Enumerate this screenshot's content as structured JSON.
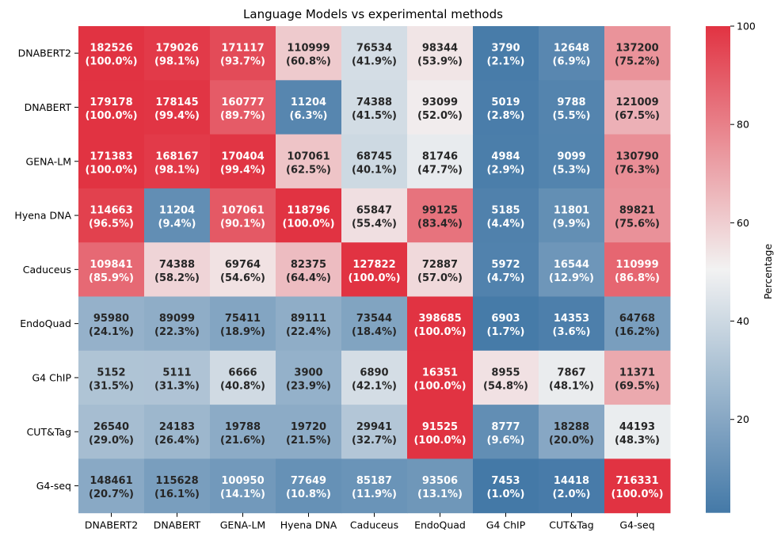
{
  "chart_data": {
    "type": "heatmap",
    "title": "Language Models vs experimental methods",
    "xlabel": "",
    "ylabel": "",
    "x_categories": [
      "DNABERT2",
      "DNABERT",
      "GENA-LM",
      "Hyena DNA",
      "Caduceus",
      "EndoQuad",
      "G4 ChIP",
      "CUT&Tag",
      "G4-seq"
    ],
    "y_categories": [
      "DNABERT2",
      "DNABERT",
      "GENA-LM",
      "Hyena DNA",
      "Caduceus",
      "EndoQuad",
      "G4 ChIP",
      "CUT&Tag",
      "G4-seq"
    ],
    "counts": [
      [
        182526,
        179026,
        171117,
        110999,
        76534,
        98344,
        3790,
        12648,
        137200
      ],
      [
        179178,
        178145,
        160777,
        11204,
        74388,
        93099,
        5019,
        9788,
        121009
      ],
      [
        171383,
        168167,
        170404,
        107061,
        68745,
        81746,
        4984,
        9099,
        130790
      ],
      [
        114663,
        11204,
        107061,
        118796,
        65847,
        99125,
        5185,
        11801,
        89821
      ],
      [
        109841,
        74388,
        69764,
        82375,
        127822,
        72887,
        5972,
        16544,
        110999
      ],
      [
        95980,
        89099,
        75411,
        89111,
        73544,
        398685,
        6903,
        14353,
        64768
      ],
      [
        5152,
        5111,
        6666,
        3900,
        6890,
        16351,
        8955,
        7867,
        11371
      ],
      [
        26540,
        24183,
        19788,
        19720,
        29941,
        91525,
        8777,
        18288,
        44193
      ],
      [
        148461,
        115628,
        100950,
        77649,
        85187,
        93506,
        7453,
        14418,
        716331
      ]
    ],
    "percentages": [
      [
        100.0,
        98.1,
        93.7,
        60.8,
        41.9,
        53.9,
        2.1,
        6.9,
        75.2
      ],
      [
        100.0,
        99.4,
        89.7,
        6.3,
        41.5,
        52.0,
        2.8,
        5.5,
        67.5
      ],
      [
        100.0,
        98.1,
        99.4,
        62.5,
        40.1,
        47.7,
        2.9,
        5.3,
        76.3
      ],
      [
        96.5,
        9.4,
        90.1,
        100.0,
        55.4,
        83.4,
        4.4,
        9.9,
        75.6
      ],
      [
        85.9,
        58.2,
        54.6,
        64.4,
        100.0,
        57.0,
        4.7,
        12.9,
        86.8
      ],
      [
        24.1,
        22.3,
        18.9,
        22.4,
        18.4,
        100.0,
        1.7,
        3.6,
        16.2
      ],
      [
        31.5,
        31.3,
        40.8,
        23.9,
        42.1,
        100.0,
        54.8,
        48.1,
        69.5
      ],
      [
        29.0,
        26.4,
        21.6,
        21.5,
        32.7,
        100.0,
        9.6,
        20.0,
        48.3
      ],
      [
        20.7,
        16.1,
        14.1,
        10.8,
        11.9,
        13.1,
        1.0,
        2.0,
        100.0
      ]
    ],
    "colorbar": {
      "label": "Percentage",
      "ticks": [
        20,
        40,
        60,
        80,
        100
      ],
      "range": [
        1.0,
        100.0
      ],
      "colormap": [
        "#4479a7",
        "#f2f2f2",
        "#e13342"
      ]
    }
  }
}
